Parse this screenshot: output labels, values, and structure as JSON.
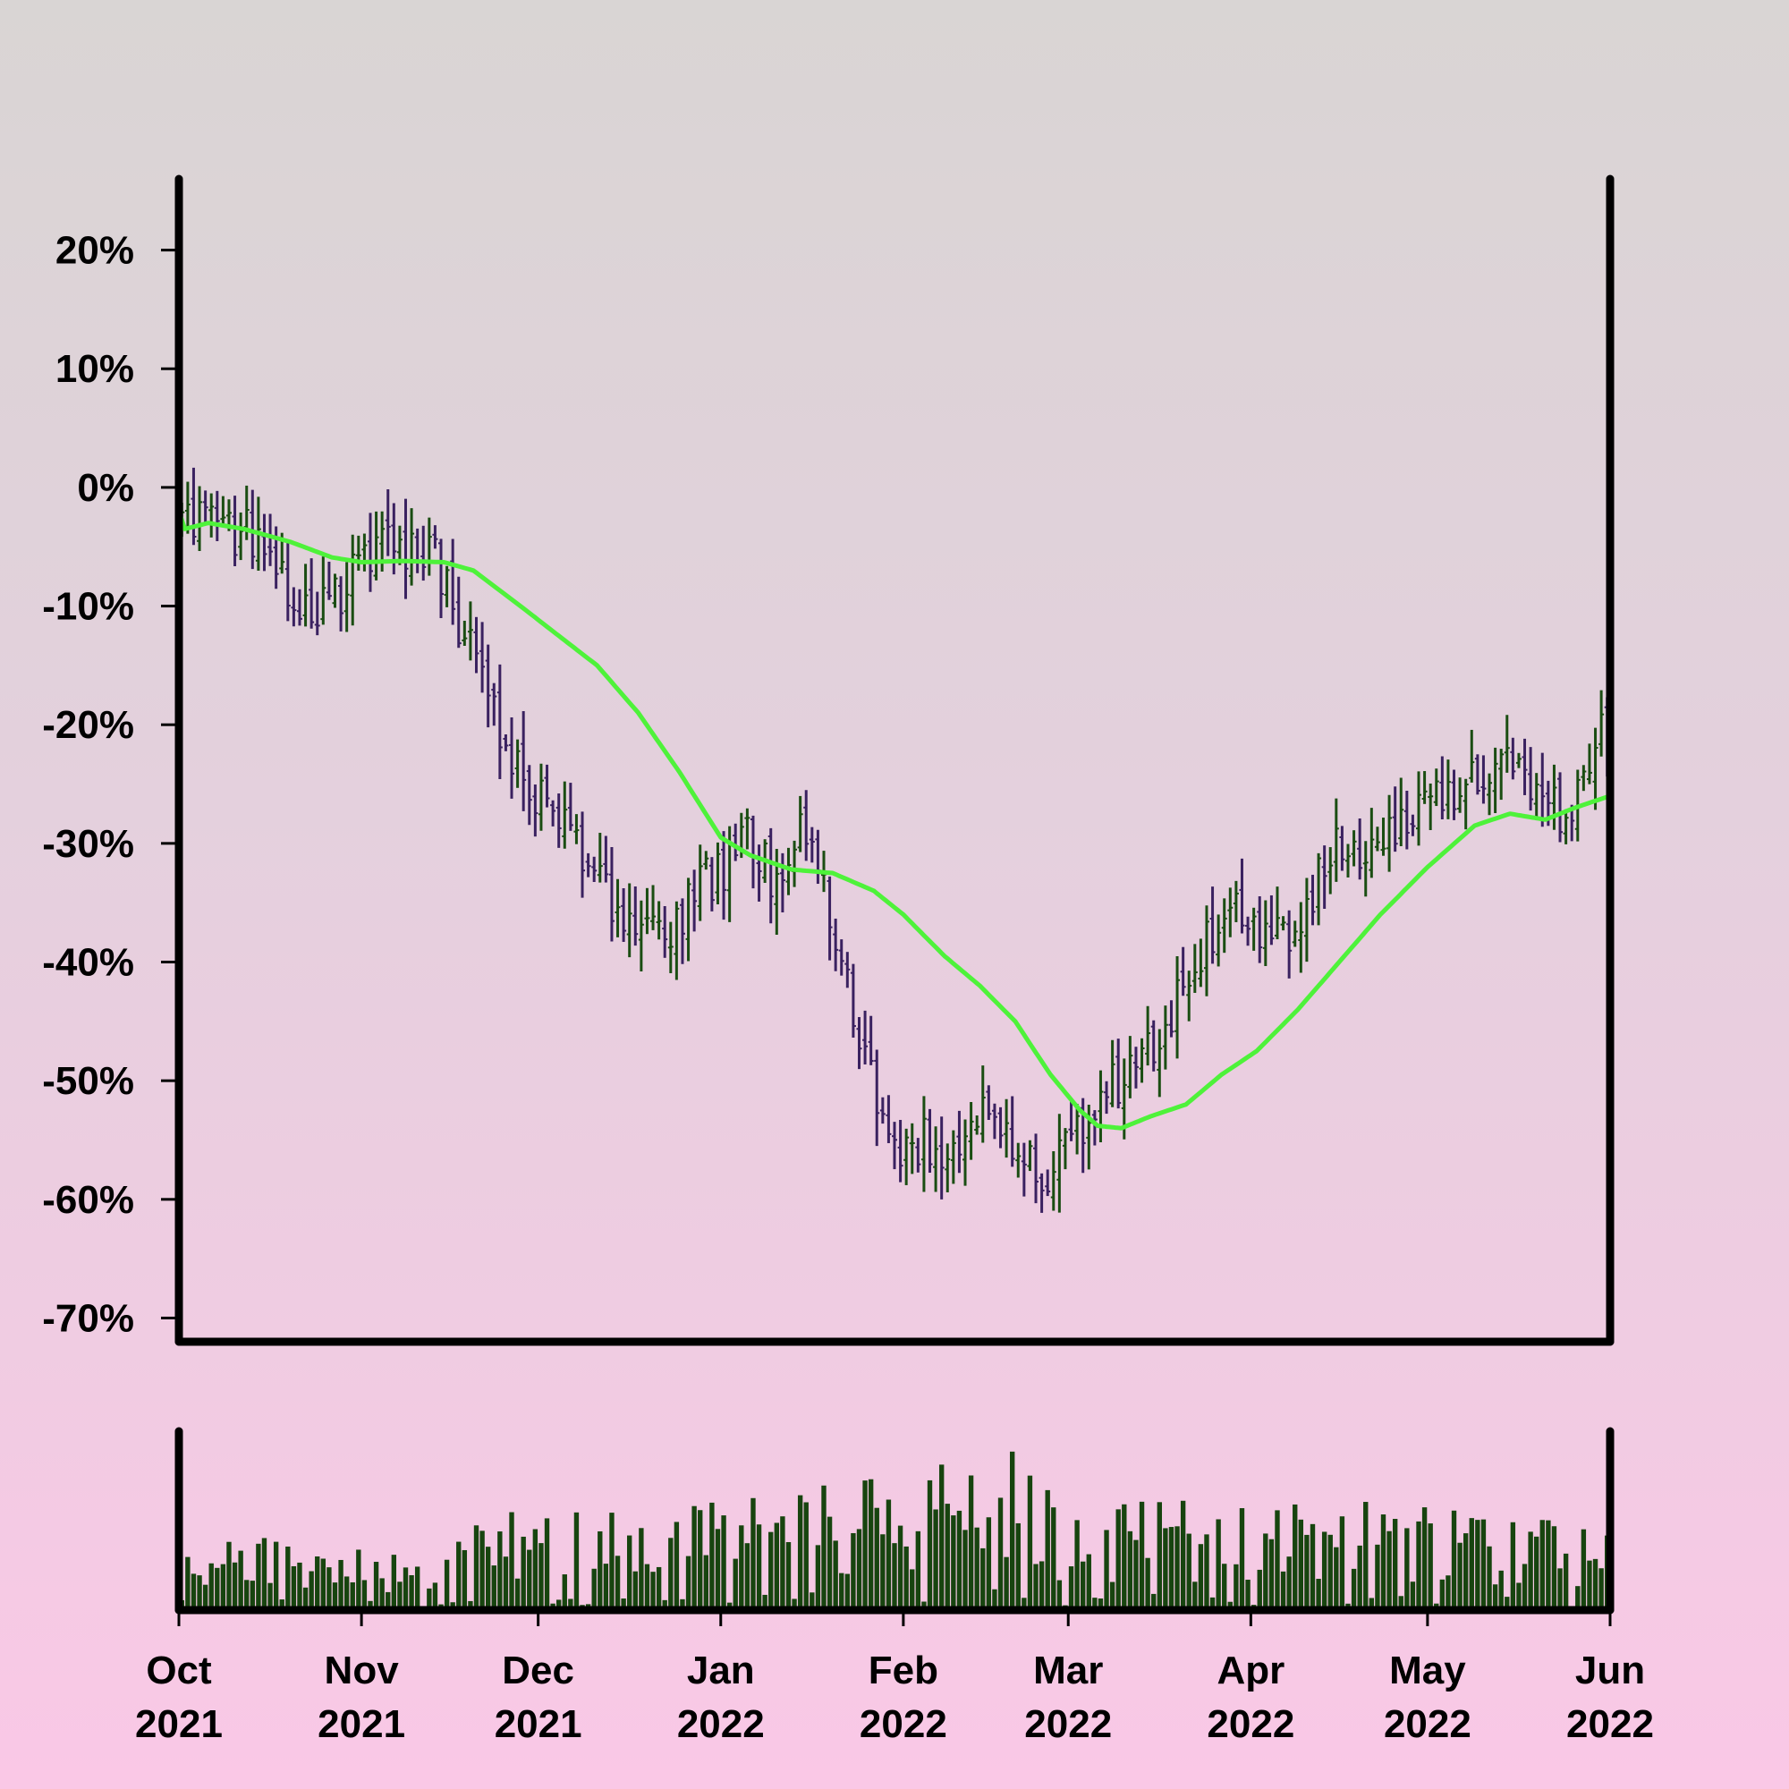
{
  "chart_data": [
    {
      "type": "ohlc",
      "panel": "price",
      "yaxis": {
        "ylim": [
          -72,
          26
        ],
        "ticks": [
          20,
          10,
          0,
          -10,
          -20,
          -30,
          -40,
          -50,
          -60,
          -70
        ],
        "tick_labels": [
          "20%",
          "10%",
          "0%",
          "-10%",
          "-20%",
          "-30%",
          "-40%",
          "-50%",
          "-60%",
          "-70%"
        ]
      },
      "xaxis": {
        "range": [
          "2021-10-01",
          "2022-06-01"
        ],
        "ticks": [
          "2021-10-01",
          "2021-11-01",
          "2021-12-01",
          "2022-01-01",
          "2022-02-01",
          "2022-03-01",
          "2022-04-01",
          "2022-05-01",
          "2022-06-01"
        ],
        "tick_labels": [
          [
            "Oct",
            "2021"
          ],
          [
            "Nov",
            "2021"
          ],
          [
            "Dec",
            "2021"
          ],
          [
            "Jan",
            "2022"
          ],
          [
            "Feb",
            "2022"
          ],
          [
            "Mar",
            "2022"
          ],
          [
            "Apr",
            "2022"
          ],
          [
            "May",
            "2022"
          ],
          [
            "Jun",
            "2022"
          ]
        ]
      },
      "close_path": [
        [
          "2021-10-01",
          -2
        ],
        [
          "2021-10-05",
          -2
        ],
        [
          "2021-10-08",
          -3
        ],
        [
          "2021-10-12",
          -4
        ],
        [
          "2021-10-16",
          -6
        ],
        [
          "2021-10-20",
          -9
        ],
        [
          "2021-10-24",
          -11
        ],
        [
          "2021-10-28",
          -9
        ],
        [
          "2021-11-01",
          -6
        ],
        [
          "2021-11-05",
          -5
        ],
        [
          "2021-11-09",
          -5
        ],
        [
          "2021-11-13",
          -6
        ],
        [
          "2021-11-17",
          -12
        ],
        [
          "2021-11-21",
          -16
        ],
        [
          "2021-11-25",
          -22
        ],
        [
          "2021-11-29",
          -25
        ],
        [
          "2021-12-03",
          -27
        ],
        [
          "2021-12-07",
          -29
        ],
        [
          "2021-12-11",
          -34
        ],
        [
          "2021-12-15",
          -37
        ],
        [
          "2021-12-19",
          -35
        ],
        [
          "2021-12-23",
          -37
        ],
        [
          "2021-12-27",
          -34
        ],
        [
          "2022-01-01",
          -32
        ],
        [
          "2022-01-05",
          -30
        ],
        [
          "2022-01-09",
          -33
        ],
        [
          "2022-01-13",
          -29
        ],
        [
          "2022-01-17",
          -32
        ],
        [
          "2022-01-20",
          -38
        ],
        [
          "2022-01-24",
          -46
        ],
        [
          "2022-01-28",
          -54
        ],
        [
          "2022-02-01",
          -56
        ],
        [
          "2022-02-05",
          -55
        ],
        [
          "2022-02-09",
          -56
        ],
        [
          "2022-02-13",
          -52
        ],
        [
          "2022-02-17",
          -54
        ],
        [
          "2022-02-21",
          -57
        ],
        [
          "2022-02-25",
          -58
        ],
        [
          "2022-03-01",
          -55
        ],
        [
          "2022-03-05",
          -52
        ],
        [
          "2022-03-09",
          -50
        ],
        [
          "2022-03-13",
          -48
        ],
        [
          "2022-03-17",
          -46
        ],
        [
          "2022-03-21",
          -41
        ],
        [
          "2022-03-25",
          -38
        ],
        [
          "2022-03-29",
          -36
        ],
        [
          "2022-04-02",
          -37
        ],
        [
          "2022-04-06",
          -38
        ],
        [
          "2022-04-10",
          -35
        ],
        [
          "2022-04-14",
          -30
        ],
        [
          "2022-04-18",
          -31
        ],
        [
          "2022-04-22",
          -29
        ],
        [
          "2022-04-26",
          -28
        ],
        [
          "2022-04-30",
          -27
        ],
        [
          "2022-05-04",
          -27
        ],
        [
          "2022-05-08",
          -25
        ],
        [
          "2022-05-12",
          -23
        ],
        [
          "2022-05-16",
          -25
        ],
        [
          "2022-05-20",
          -28
        ],
        [
          "2022-05-24",
          -27
        ],
        [
          "2022-05-28",
          -23
        ],
        [
          "2022-05-31",
          -20
        ]
      ],
      "moving_average": [
        [
          "2021-10-01",
          -2
        ],
        [
          "2021-10-02",
          -3.5
        ],
        [
          "2021-10-06",
          -3
        ],
        [
          "2021-10-12",
          -3.5
        ],
        [
          "2021-10-20",
          -4.6
        ],
        [
          "2021-10-27",
          -5.9
        ],
        [
          "2021-11-01",
          -6.3
        ],
        [
          "2021-11-08",
          -6.2
        ],
        [
          "2021-11-15",
          -6.3
        ],
        [
          "2021-11-20",
          -7
        ],
        [
          "2021-11-28",
          -10
        ],
        [
          "2021-12-05",
          -12.7
        ],
        [
          "2021-12-11",
          -15
        ],
        [
          "2021-12-18",
          -19
        ],
        [
          "2021-12-25",
          -24
        ],
        [
          "2022-01-01",
          -29.5
        ],
        [
          "2022-01-06",
          -31
        ],
        [
          "2022-01-13",
          -32.2
        ],
        [
          "2022-01-20",
          -32.5
        ],
        [
          "2022-01-27",
          -34
        ],
        [
          "2022-02-01",
          -36
        ],
        [
          "2022-02-08",
          -39.5
        ],
        [
          "2022-02-14",
          -42
        ],
        [
          "2022-02-20",
          -45
        ],
        [
          "2022-02-26",
          -49.5
        ],
        [
          "2022-03-03",
          -52.5
        ],
        [
          "2022-03-06",
          -53.8
        ],
        [
          "2022-03-10",
          -54
        ],
        [
          "2022-03-15",
          -53
        ],
        [
          "2022-03-21",
          -52
        ],
        [
          "2022-03-27",
          -49.5
        ],
        [
          "2022-04-02",
          -47.5
        ],
        [
          "2022-04-09",
          -44
        ],
        [
          "2022-04-16",
          -40
        ],
        [
          "2022-04-23",
          -36
        ],
        [
          "2022-05-01",
          -32
        ],
        [
          "2022-05-09",
          -28.5
        ],
        [
          "2022-05-15",
          -27.5
        ],
        [
          "2022-05-21",
          -28
        ],
        [
          "2022-05-26",
          -27
        ],
        [
          "2022-06-01",
          -26
        ]
      ],
      "colors": {
        "up": "#1a4d12",
        "down": "#3a2160",
        "moving_average": "#4ef23a"
      }
    },
    {
      "type": "bar",
      "panel": "volume",
      "color": "#17440f",
      "x_range": [
        "2021-10-01",
        "2022-06-01"
      ],
      "relative_volume_profile": [
        [
          "2021-10-01",
          0.35
        ],
        [
          "2021-11-01",
          0.28
        ],
        [
          "2021-12-01",
          0.45
        ],
        [
          "2022-01-01",
          0.5
        ],
        [
          "2022-02-01",
          0.6
        ],
        [
          "2022-02-20",
          0.72
        ],
        [
          "2022-03-01",
          0.45
        ],
        [
          "2022-04-01",
          0.5
        ],
        [
          "2022-05-01",
          0.45
        ],
        [
          "2022-06-01",
          0.35
        ]
      ]
    }
  ]
}
